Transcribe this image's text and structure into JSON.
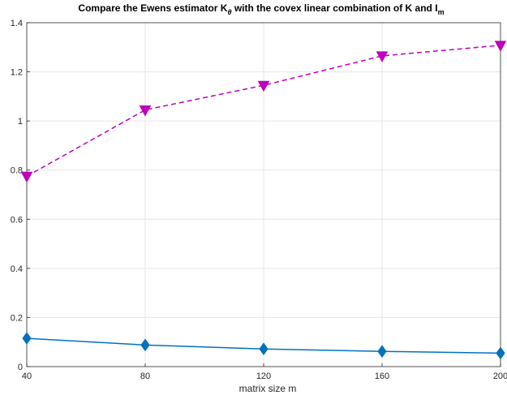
{
  "chart_data": {
    "type": "line",
    "title": {
      "part1": "Compare the Ewens estimator K",
      "theta_sub": "θ",
      "part2": " with the covex linear combination of K and I",
      "m_sub": "m"
    },
    "xlabel": "matrix size m",
    "ylabel": "",
    "x": [
      40,
      80,
      120,
      160,
      200
    ],
    "xticks": [
      "40",
      "80",
      "120",
      "160",
      "200"
    ],
    "yticks": [
      "0",
      "0.2",
      "0.4",
      "0.6",
      "0.8",
      "1",
      "1.2",
      "1.4"
    ],
    "xlim": [
      40,
      200
    ],
    "ylim": [
      0,
      1.4
    ],
    "grid": true,
    "series": [
      {
        "values": [
          0.115,
          0.088,
          0.072,
          0.062,
          0.055
        ],
        "color": "#0072BD",
        "line_style": "solid",
        "marker": "diamond"
      },
      {
        "values": [
          0.775,
          1.045,
          1.145,
          1.265,
          1.308
        ],
        "color": "#BE00BE",
        "line_style": "dashed",
        "marker": "triangle-down"
      }
    ]
  }
}
